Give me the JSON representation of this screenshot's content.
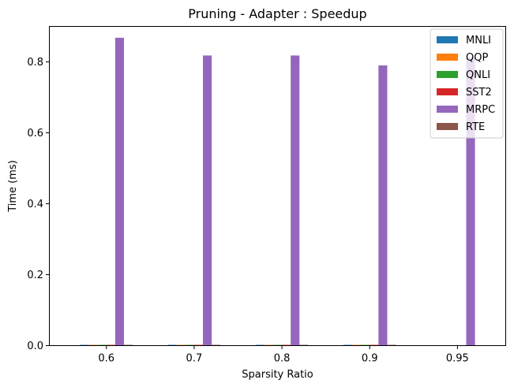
{
  "chart_data": {
    "type": "bar",
    "title": "Pruning - Adapter : Speedup",
    "xlabel": "Sparsity Ratio",
    "ylabel": "Time (ms)",
    "categories": [
      "0.6",
      "0.7",
      "0.8",
      "0.9",
      "0.95"
    ],
    "ylim": [
      0,
      0.9
    ],
    "yticks": [
      0.0,
      0.2,
      0.4,
      0.6,
      0.8
    ],
    "ytick_labels": [
      "0.0",
      "0.2",
      "0.4",
      "0.6",
      "0.8"
    ],
    "grid": false,
    "legend_position": "top-right",
    "series": [
      {
        "name": "MNLI",
        "color": "#1f77b4",
        "values": [
          0.001,
          0.001,
          0.001,
          0.001,
          0
        ]
      },
      {
        "name": "QQP",
        "color": "#ff7f0e",
        "values": [
          0.001,
          0.001,
          0.001,
          0.001,
          0
        ]
      },
      {
        "name": "QNLI",
        "color": "#2ca02c",
        "values": [
          0.001,
          0.001,
          0.001,
          0.001,
          0
        ]
      },
      {
        "name": "SST2",
        "color": "#d62728",
        "values": [
          0.001,
          0.001,
          0.001,
          0.001,
          0
        ]
      },
      {
        "name": "MRPC",
        "color": "#9467bd",
        "values": [
          0.868,
          0.818,
          0.818,
          0.79,
          0.812
        ]
      },
      {
        "name": "RTE",
        "color": "#8c564b",
        "values": [
          0.001,
          0.001,
          0.001,
          0.001,
          0
        ]
      }
    ]
  }
}
